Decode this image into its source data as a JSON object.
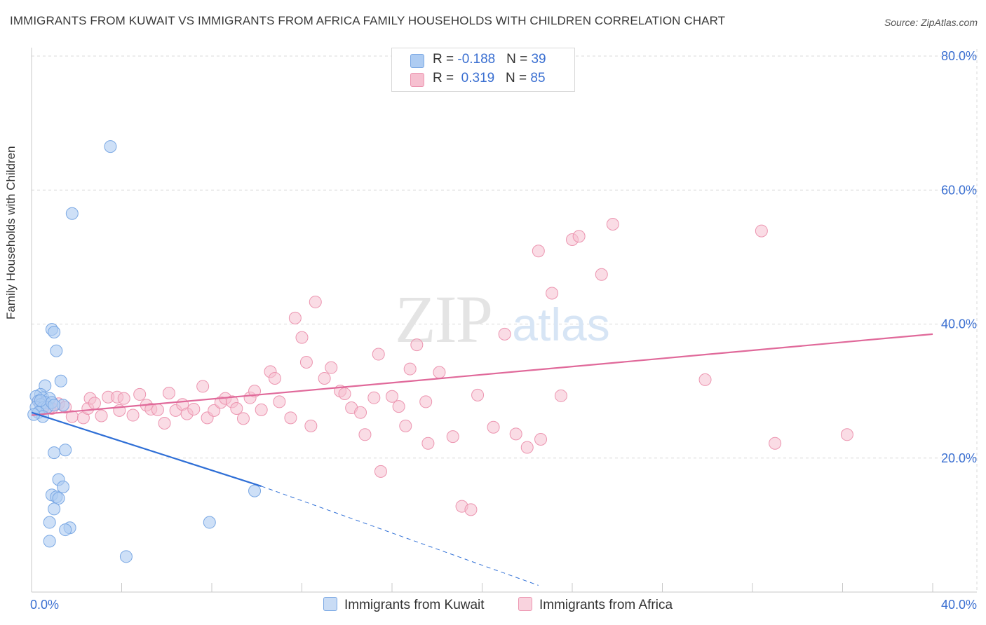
{
  "title": "IMMIGRANTS FROM KUWAIT VS IMMIGRANTS FROM AFRICA FAMILY HOUSEHOLDS WITH CHILDREN CORRELATION CHART",
  "source": "Source: ZipAtlas.com",
  "watermark": {
    "zip": "ZIP",
    "atlas": "atlas"
  },
  "legend_top": {
    "kuwait": {
      "r_label": "R = ",
      "r_value": "-0.188",
      "n_label": "N = ",
      "n_value": "39"
    },
    "africa": {
      "r_label": "R = ",
      "r_value": " 0.319",
      "n_label": "N = ",
      "n_value": "85"
    }
  },
  "colors": {
    "kuwait_fill": "#aeccf2",
    "kuwait_stroke": "#7aa8e4",
    "kuwait_line": "#2f6fd6",
    "africa_fill": "#f6c0d0",
    "africa_stroke": "#ec95b0",
    "africa_line": "#e0699a",
    "tick_label": "#3a6fd1",
    "grid": "#d9d9d9"
  },
  "chart_data": {
    "type": "scatter",
    "title": "IMMIGRANTS FROM KUWAIT VS IMMIGRANTS FROM AFRICA FAMILY HOUSEHOLDS WITH CHILDREN CORRELATION CHART",
    "xlabel": "",
    "ylabel": "Family Households with Children",
    "xlim": [
      0,
      40
    ],
    "ylim": [
      0,
      80
    ],
    "x_tick_labels": [
      "0.0%",
      "40.0%"
    ],
    "y_tick_labels": [
      "20.0%",
      "40.0%",
      "60.0%",
      "80.0%"
    ],
    "y_ticks": [
      20,
      40,
      60,
      80
    ],
    "grid": true,
    "legend_position": "top-center",
    "series": [
      {
        "name": "Immigrants from Kuwait",
        "R": -0.188,
        "N": 39,
        "trend": {
          "x": [
            0,
            10.2
          ],
          "y": [
            26.8,
            15.8
          ],
          "dashed_to": [
            22.5,
            1.0
          ]
        },
        "points": [
          [
            3.5,
            66.5
          ],
          [
            1.8,
            56.5
          ],
          [
            0.9,
            39.2
          ],
          [
            1.0,
            38.8
          ],
          [
            1.1,
            36.0
          ],
          [
            1.3,
            31.5
          ],
          [
            0.6,
            30.8
          ],
          [
            0.4,
            29.5
          ],
          [
            0.5,
            29.0
          ],
          [
            0.2,
            29.2
          ],
          [
            0.8,
            28.9
          ],
          [
            0.3,
            28.5
          ],
          [
            0.6,
            28.3
          ],
          [
            0.4,
            28.0
          ],
          [
            0.2,
            27.6
          ],
          [
            0.5,
            27.5
          ],
          [
            0.7,
            27.6
          ],
          [
            1.4,
            27.9
          ],
          [
            0.3,
            26.8
          ],
          [
            0.5,
            26.2
          ],
          [
            0.1,
            26.5
          ],
          [
            0.4,
            28.6
          ],
          [
            0.9,
            28.3
          ],
          [
            1.0,
            27.9
          ],
          [
            1.5,
            21.2
          ],
          [
            1.0,
            20.8
          ],
          [
            1.2,
            16.8
          ],
          [
            1.4,
            15.7
          ],
          [
            0.9,
            14.5
          ],
          [
            1.1,
            14.2
          ],
          [
            1.2,
            14.0
          ],
          [
            1.0,
            12.4
          ],
          [
            0.8,
            10.4
          ],
          [
            1.7,
            9.6
          ],
          [
            1.5,
            9.3
          ],
          [
            0.8,
            7.6
          ],
          [
            7.9,
            10.4
          ],
          [
            4.2,
            5.3
          ],
          [
            9.9,
            15.1
          ]
        ]
      },
      {
        "name": "Immigrants from Africa",
        "R": 0.319,
        "N": 85,
        "trend": {
          "x": [
            0,
            40
          ],
          "y": [
            26.4,
            38.5
          ]
        },
        "points": [
          [
            0.3,
            28.5
          ],
          [
            0.5,
            27.8
          ],
          [
            0.8,
            27.5
          ],
          [
            1.2,
            28.1
          ],
          [
            1.5,
            27.6
          ],
          [
            1.8,
            26.2
          ],
          [
            2.3,
            26.0
          ],
          [
            2.5,
            27.4
          ],
          [
            2.6,
            28.9
          ],
          [
            2.8,
            28.2
          ],
          [
            3.1,
            26.3
          ],
          [
            3.4,
            29.1
          ],
          [
            3.8,
            29.1
          ],
          [
            3.9,
            27.1
          ],
          [
            4.1,
            28.9
          ],
          [
            4.5,
            26.4
          ],
          [
            4.8,
            29.5
          ],
          [
            5.1,
            27.9
          ],
          [
            5.3,
            27.3
          ],
          [
            5.6,
            27.2
          ],
          [
            5.9,
            25.2
          ],
          [
            6.1,
            29.7
          ],
          [
            6.4,
            27.1
          ],
          [
            6.7,
            28.0
          ],
          [
            6.9,
            26.6
          ],
          [
            7.2,
            27.3
          ],
          [
            7.6,
            30.7
          ],
          [
            7.8,
            26.0
          ],
          [
            8.1,
            27.1
          ],
          [
            8.4,
            28.3
          ],
          [
            8.6,
            28.9
          ],
          [
            8.9,
            28.4
          ],
          [
            9.1,
            27.4
          ],
          [
            9.4,
            25.9
          ],
          [
            9.7,
            29.0
          ],
          [
            9.9,
            30.0
          ],
          [
            10.2,
            27.2
          ],
          [
            10.6,
            32.9
          ],
          [
            10.8,
            31.9
          ],
          [
            11.0,
            28.4
          ],
          [
            11.5,
            26.0
          ],
          [
            11.7,
            40.9
          ],
          [
            12.0,
            38.0
          ],
          [
            12.2,
            34.3
          ],
          [
            12.4,
            24.8
          ],
          [
            12.6,
            43.3
          ],
          [
            13.0,
            31.9
          ],
          [
            13.3,
            33.5
          ],
          [
            13.7,
            30.0
          ],
          [
            13.9,
            29.6
          ],
          [
            14.2,
            27.5
          ],
          [
            14.6,
            26.8
          ],
          [
            14.8,
            23.5
          ],
          [
            15.2,
            29.0
          ],
          [
            15.4,
            35.5
          ],
          [
            15.5,
            18.0
          ],
          [
            16.0,
            29.2
          ],
          [
            16.3,
            27.7
          ],
          [
            16.6,
            24.8
          ],
          [
            16.8,
            33.3
          ],
          [
            17.1,
            36.9
          ],
          [
            17.5,
            28.4
          ],
          [
            17.6,
            22.2
          ],
          [
            18.1,
            32.8
          ],
          [
            18.7,
            23.2
          ],
          [
            19.1,
            12.8
          ],
          [
            19.5,
            12.3
          ],
          [
            19.8,
            29.4
          ],
          [
            20.5,
            24.6
          ],
          [
            21.0,
            38.5
          ],
          [
            21.5,
            23.6
          ],
          [
            22.0,
            21.6
          ],
          [
            22.5,
            50.9
          ],
          [
            22.6,
            22.8
          ],
          [
            23.1,
            44.6
          ],
          [
            23.5,
            29.3
          ],
          [
            24.0,
            52.6
          ],
          [
            24.3,
            53.1
          ],
          [
            25.3,
            47.4
          ],
          [
            25.8,
            54.9
          ],
          [
            29.9,
            31.7
          ],
          [
            32.4,
            53.9
          ],
          [
            33.0,
            22.2
          ],
          [
            36.2,
            23.5
          ],
          [
            0.9,
            27.4
          ]
        ]
      }
    ]
  },
  "bottom_legend": {
    "kuwait": "Immigrants from Kuwait",
    "africa": "Immigrants from Africa"
  }
}
